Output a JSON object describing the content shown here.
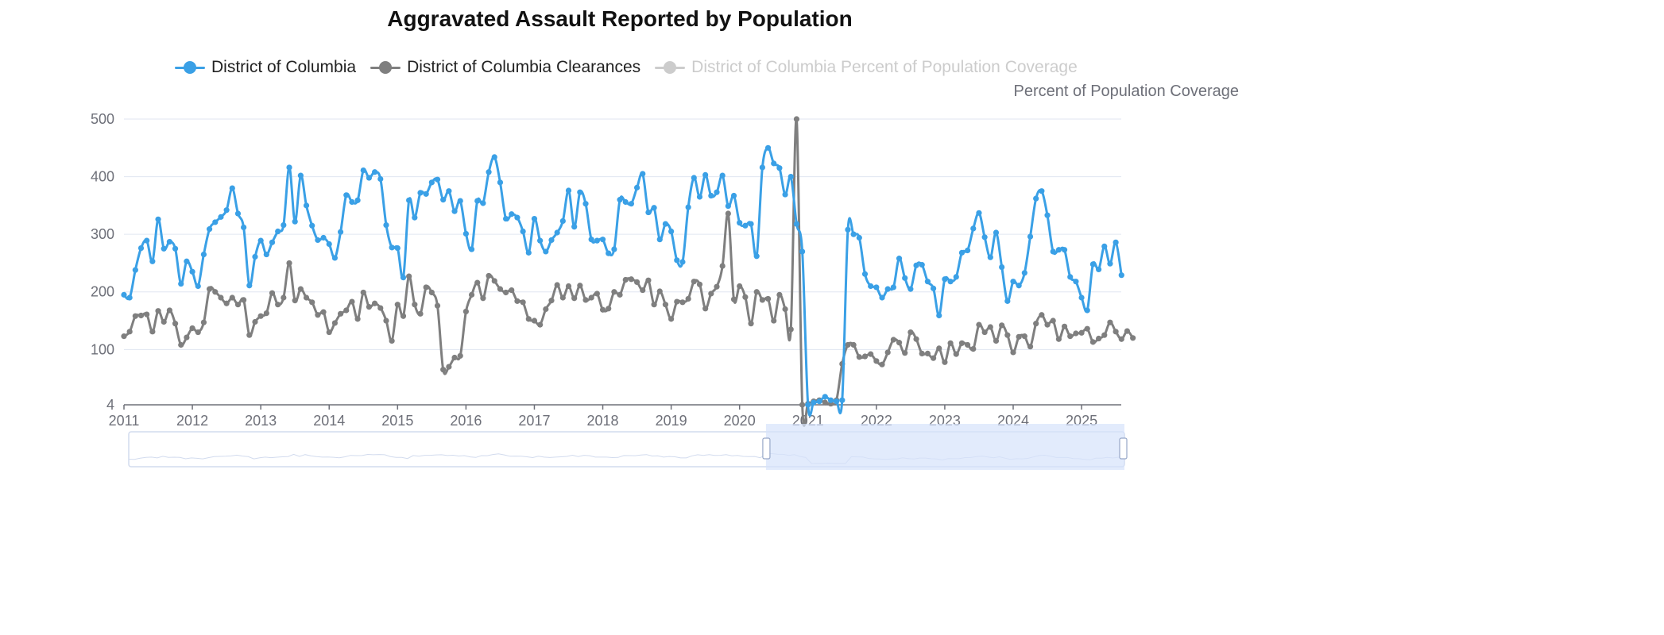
{
  "chart_data": {
    "type": "line",
    "title": "Aggravated Assault Reported by Population",
    "ylim": [
      4,
      500
    ],
    "y_ticks": [
      "4",
      "100",
      "200",
      "300",
      "400",
      "500"
    ],
    "y_right_label": "Percent of Population Coverage",
    "x_ticks": [
      "2011",
      "2012",
      "2013",
      "2014",
      "2015",
      "2016",
      "2017",
      "2018",
      "2019",
      "2020",
      "2021",
      "2022",
      "2023",
      "2024",
      "2025"
    ],
    "x_start": "2011-01",
    "x_end": "2025-07",
    "grid": true,
    "legend_position": "top",
    "series": [
      {
        "name": "District of Columbia",
        "color": "#3aa0e6",
        "visible": true,
        "values": [
          195,
          190,
          238,
          276,
          289,
          253,
          326,
          275,
          287,
          275,
          214,
          253,
          235,
          210,
          265,
          309,
          321,
          330,
          342,
          380,
          336,
          312,
          211,
          261,
          289,
          265,
          286,
          305,
          316,
          416,
          322,
          402,
          350,
          315,
          290,
          294,
          283,
          259,
          304,
          368,
          356,
          359,
          411,
          398,
          408,
          396,
          316,
          277,
          276,
          225,
          359,
          329,
          372,
          370,
          390,
          395,
          360,
          375,
          340,
          358,
          301,
          274,
          358,
          354,
          408,
          434,
          390,
          327,
          335,
          329,
          305,
          268,
          327,
          289,
          270,
          290,
          303,
          323,
          376,
          313,
          373,
          353,
          291,
          289,
          291,
          267,
          274,
          360,
          356,
          353,
          381,
          405,
          338,
          346,
          291,
          318,
          305,
          255,
          252,
          347,
          398,
          365,
          403,
          367,
          373,
          402,
          349,
          367,
          320,
          315,
          318,
          262,
          416,
          450,
          423,
          415,
          369,
          400,
          318,
          270,
          4,
          8,
          10,
          18,
          12,
          10,
          12,
          308,
          300,
          294,
          231,
          210,
          208,
          190,
          205,
          208,
          258,
          224,
          205,
          246,
          247,
          218,
          206,
          159,
          222,
          218,
          226,
          268,
          272,
          310,
          337,
          295,
          260,
          303,
          243,
          184,
          218,
          211,
          233,
          296,
          362,
          375,
          333,
          270,
          273,
          273,
          226,
          218,
          190,
          168,
          248,
          239,
          279,
          249,
          286,
          229
        ]
      },
      {
        "name": "District of Columbia Clearances",
        "color": "#7f7f7f",
        "visible": true,
        "values": [
          123,
          131,
          158,
          159,
          161,
          131,
          167,
          148,
          168,
          145,
          108,
          121,
          137,
          130,
          147,
          205,
          200,
          190,
          180,
          190,
          178,
          186,
          125,
          148,
          158,
          163,
          198,
          178,
          190,
          250,
          185,
          205,
          190,
          182,
          160,
          165,
          130,
          146,
          162,
          168,
          183,
          153,
          199,
          174,
          180,
          172,
          150,
          115,
          178,
          158,
          227,
          178,
          162,
          208,
          199,
          176,
          65,
          70,
          86,
          89,
          166,
          195,
          216,
          189,
          228,
          219,
          205,
          199,
          203,
          184,
          182,
          153,
          150,
          143,
          170,
          185,
          212,
          190,
          210,
          189,
          211,
          186,
          190,
          197,
          169,
          171,
          200,
          195,
          221,
          222,
          217,
          203,
          220,
          178,
          201,
          178,
          153,
          183,
          182,
          188,
          218,
          213,
          171,
          197,
          209,
          245,
          336,
          187,
          210,
          191,
          145,
          200,
          186,
          188,
          150,
          195,
          170,
          135,
          500,
          4,
          6,
          10,
          12,
          8,
          6,
          12,
          75,
          108,
          108,
          87,
          88,
          92,
          80,
          74,
          95,
          117,
          112,
          94,
          130,
          118,
          93,
          93,
          85,
          102,
          78,
          111,
          92,
          111,
          108,
          101,
          143,
          130,
          139,
          115,
          142,
          125,
          95,
          122,
          123,
          105,
          145,
          160,
          143,
          150,
          118,
          140,
          123,
          128,
          129,
          136,
          113,
          119,
          125,
          147,
          131,
          118,
          132,
          120
        ]
      },
      {
        "name": "District of Columbia Percent of Population Coverage",
        "color": "#cccccc",
        "visible": false,
        "values": []
      }
    ],
    "zoom_window": {
      "start_fraction": 0.64,
      "end_fraction": 1.0
    }
  }
}
